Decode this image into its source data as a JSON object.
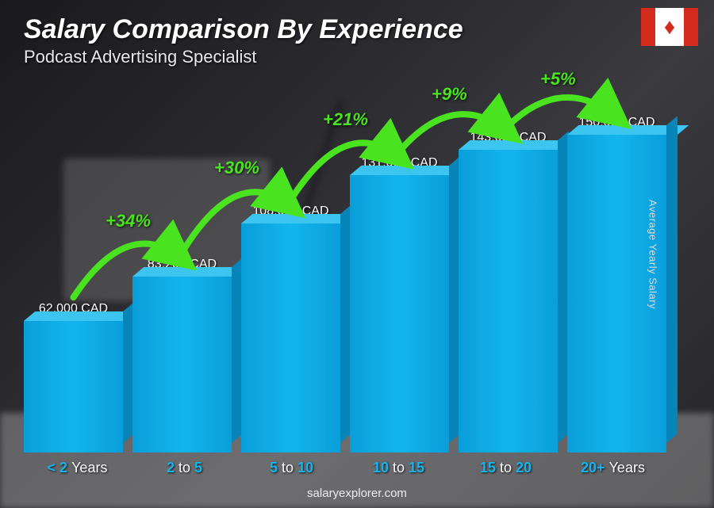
{
  "header": {
    "title": "Salary Comparison By Experience",
    "subtitle": "Podcast Advertising Specialist",
    "flag_country": "Canada"
  },
  "chart": {
    "type": "bar",
    "y_axis_label": "Average Yearly Salary",
    "max_value": 150000,
    "currency": "CAD",
    "bar_color_front": "#13b5ef",
    "bar_color_top": "#3cc5f0",
    "bar_color_side": "#0785b8",
    "arrow_color": "#49e31f",
    "value_text_color": "#ffffff",
    "xlabel_color": "#13b5ef",
    "background_dark": "#2a2a2a",
    "bars": [
      {
        "category_html": "< 2 <span class='light'>Years</span>",
        "value": 62000,
        "value_label": "62,000 CAD"
      },
      {
        "category_html": "2 <span class='light'>to</span> 5",
        "value": 83200,
        "value_label": "83,200 CAD",
        "pct_from_prev": "+34%"
      },
      {
        "category_html": "5 <span class='light'>to</span> 10",
        "value": 108000,
        "value_label": "108,000 CAD",
        "pct_from_prev": "+30%"
      },
      {
        "category_html": "10 <span class='light'>to</span> 15",
        "value": 131000,
        "value_label": "131,000 CAD",
        "pct_from_prev": "+21%"
      },
      {
        "category_html": "15 <span class='light'>to</span> 20",
        "value": 143000,
        "value_label": "143,000 CAD",
        "pct_from_prev": "+9%"
      },
      {
        "category_html": "20+ <span class='light'>Years</span>",
        "value": 150000,
        "value_label": "150,000 CAD",
        "pct_from_prev": "+5%"
      }
    ]
  },
  "footer": {
    "text": "salaryexplorer.com"
  }
}
